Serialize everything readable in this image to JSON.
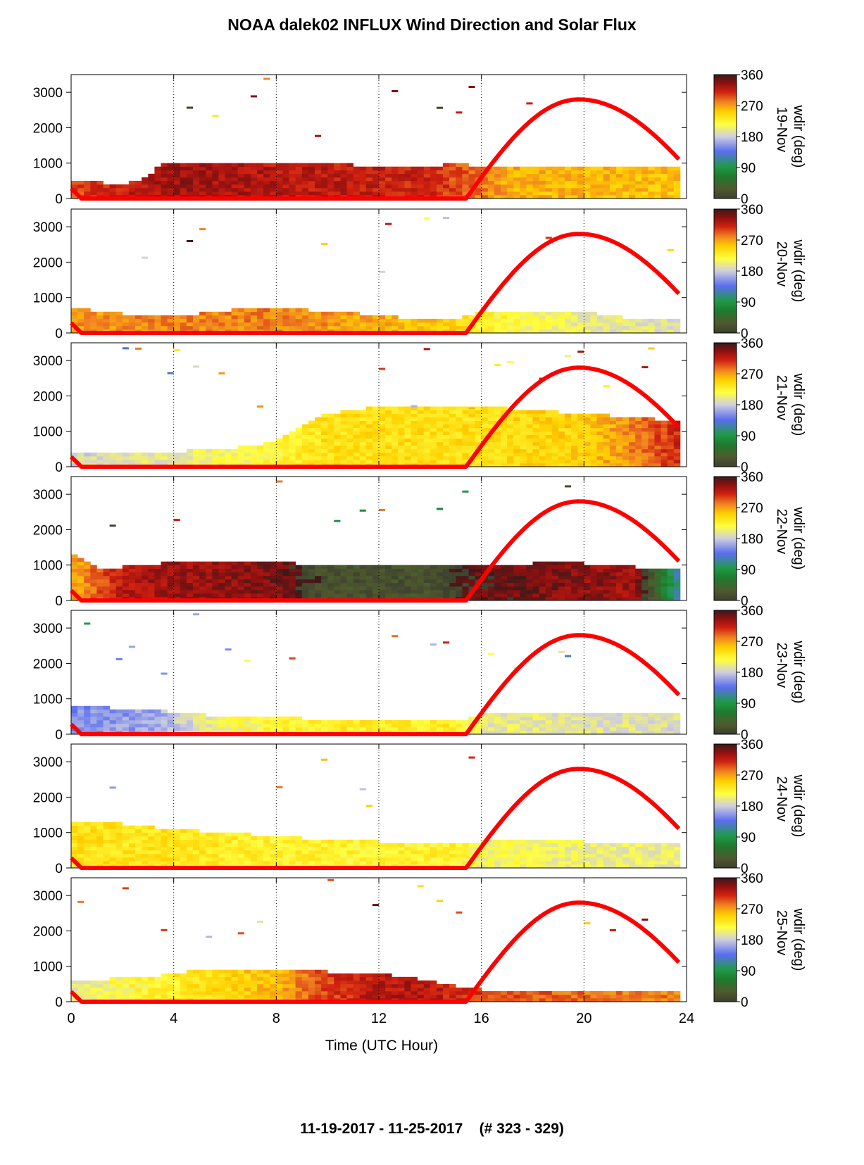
{
  "title": "NOAA dalek02 INFLUX Wind Direction and Solar Flux",
  "footer": "11-19-2017 - 11-25-2017    (# 323 - 329)",
  "chart_data": {
    "type": "heatmap",
    "title": "NOAA dalek02 INFLUX Wind Direction and Solar Flux",
    "xlabel": "Time (UTC Hour)",
    "xlim": [
      0,
      24
    ],
    "xticks": [
      0,
      4,
      8,
      12,
      16,
      20,
      24
    ],
    "ylim": [
      0,
      3500
    ],
    "yticks": [
      0,
      1000,
      2000,
      3000
    ],
    "colorbar": {
      "label": "wdir (deg)",
      "range": [
        0,
        360
      ],
      "ticks": [
        0,
        90,
        180,
        270,
        360
      ]
    },
    "colors": {
      "solar_curve": "#ff0000",
      "gridline": "#000000"
    },
    "panels": [
      {
        "date": "19-Nov",
        "mixing_top": [
          [
            0,
            500
          ],
          [
            1,
            460
          ],
          [
            2,
            420
          ],
          [
            3,
            600
          ],
          [
            3.6,
            1000
          ],
          [
            5,
            1050
          ],
          [
            6,
            1000
          ],
          [
            8,
            950
          ],
          [
            9,
            1000
          ],
          [
            10,
            1000
          ],
          [
            11,
            950
          ],
          [
            13,
            900
          ],
          [
            14,
            880
          ],
          [
            15,
            1000
          ],
          [
            16,
            900
          ],
          [
            18,
            900
          ],
          [
            20,
            880
          ],
          [
            22,
            880
          ],
          [
            23.7,
            880
          ]
        ],
        "wind_direction": [
          [
            0,
            300
          ],
          [
            3,
            320
          ],
          [
            4,
            330
          ],
          [
            8,
            320
          ],
          [
            14,
            310
          ],
          [
            15.5,
            290
          ],
          [
            17,
            265
          ],
          [
            20,
            260
          ],
          [
            23.7,
            255
          ]
        ],
        "solar_curve": {
          "start_hour": 15.4,
          "peak_hour": 19.8,
          "end_hour": 23.7,
          "peak": 2800,
          "start_value_at_0h": 280
        }
      },
      {
        "date": "20-Nov",
        "mixing_top": [
          [
            0,
            700
          ],
          [
            2,
            550
          ],
          [
            4,
            500
          ],
          [
            6,
            600
          ],
          [
            7,
            750
          ],
          [
            8,
            700
          ],
          [
            10,
            620
          ],
          [
            12,
            500
          ],
          [
            14,
            350
          ],
          [
            15,
            380
          ],
          [
            16,
            600
          ],
          [
            18,
            650
          ],
          [
            20,
            600
          ],
          [
            22,
            400
          ],
          [
            23.7,
            450
          ]
        ],
        "wind_direction": [
          [
            0,
            270
          ],
          [
            4,
            280
          ],
          [
            8,
            280
          ],
          [
            12,
            265
          ],
          [
            15,
            250
          ],
          [
            16,
            225
          ],
          [
            20,
            200
          ],
          [
            23.7,
            190
          ]
        ],
        "solar_curve": {
          "start_hour": 15.4,
          "peak_hour": 19.8,
          "end_hour": 23.7,
          "peak": 2800,
          "start_value_at_0h": 280
        }
      },
      {
        "date": "21-Nov",
        "mixing_top": [
          [
            0,
            400
          ],
          [
            3,
            400
          ],
          [
            6,
            500
          ],
          [
            8,
            700
          ],
          [
            9,
            1200
          ],
          [
            10,
            1500
          ],
          [
            12,
            1700
          ],
          [
            14,
            1700
          ],
          [
            16,
            1700
          ],
          [
            18,
            1600
          ],
          [
            20,
            1500
          ],
          [
            22,
            1400
          ],
          [
            23.7,
            1300
          ]
        ],
        "wind_direction": [
          [
            0,
            185
          ],
          [
            4,
            200
          ],
          [
            8,
            220
          ],
          [
            10,
            240
          ],
          [
            14,
            240
          ],
          [
            16,
            240
          ],
          [
            20,
            250
          ],
          [
            22,
            280
          ],
          [
            23.7,
            310
          ]
        ],
        "solar_curve": {
          "start_hour": 15.4,
          "peak_hour": 19.8,
          "end_hour": 23.7,
          "peak": 2800,
          "start_value_at_0h": 280
        }
      },
      {
        "date": "22-Nov",
        "mixing_top": [
          [
            0,
            1300
          ],
          [
            1,
            900
          ],
          [
            3,
            1000
          ],
          [
            4,
            1100
          ],
          [
            6,
            1150
          ],
          [
            8,
            1100
          ],
          [
            10,
            950
          ],
          [
            12,
            950
          ],
          [
            14,
            1000
          ],
          [
            16,
            1000
          ],
          [
            18,
            1050
          ],
          [
            20,
            1050
          ],
          [
            22,
            950
          ],
          [
            23.7,
            850
          ]
        ],
        "wind_direction": [
          [
            0,
            260
          ],
          [
            2,
            320
          ],
          [
            4,
            330
          ],
          [
            8,
            340
          ],
          [
            10,
            20
          ],
          [
            14,
            20
          ],
          [
            16,
            350
          ],
          [
            20,
            335
          ],
          [
            22,
            330
          ],
          [
            23.7,
            120
          ]
        ],
        "solar_curve": {
          "start_hour": 15.4,
          "peak_hour": 19.8,
          "end_hour": 23.7,
          "peak": 2800,
          "start_value_at_0h": 280
        }
      },
      {
        "date": "23-Nov",
        "mixing_top": [
          [
            0,
            800
          ],
          [
            3,
            700
          ],
          [
            6,
            500
          ],
          [
            9,
            450
          ],
          [
            12,
            400
          ],
          [
            15,
            380
          ],
          [
            16,
            550
          ],
          [
            18,
            550
          ],
          [
            20,
            600
          ],
          [
            22,
            600
          ],
          [
            23.7,
            600
          ]
        ],
        "wind_direction": [
          [
            0,
            150
          ],
          [
            3,
            160
          ],
          [
            6,
            210
          ],
          [
            10,
            230
          ],
          [
            15,
            230
          ],
          [
            16,
            200
          ],
          [
            20,
            195
          ],
          [
            23.7,
            190
          ]
        ],
        "solar_curve": {
          "start_hour": 15.4,
          "peak_hour": 19.8,
          "end_hour": 23.7,
          "peak": 2800,
          "start_value_at_0h": 280
        }
      },
      {
        "date": "24-Nov",
        "mixing_top": [
          [
            0,
            1300
          ],
          [
            2,
            1250
          ],
          [
            4,
            1100
          ],
          [
            6,
            1000
          ],
          [
            8,
            900
          ],
          [
            10,
            800
          ],
          [
            12,
            750
          ],
          [
            14,
            700
          ],
          [
            16,
            750
          ],
          [
            18,
            800
          ],
          [
            20,
            750
          ],
          [
            22,
            700
          ],
          [
            23.7,
            650
          ]
        ],
        "wind_direction": [
          [
            0,
            240
          ],
          [
            4,
            235
          ],
          [
            8,
            225
          ],
          [
            12,
            225
          ],
          [
            15,
            225
          ],
          [
            16,
            210
          ],
          [
            20,
            205
          ],
          [
            23.7,
            200
          ]
        ],
        "solar_curve": {
          "start_hour": 15.4,
          "peak_hour": 19.8,
          "end_hour": 23.7,
          "peak": 2800,
          "start_value_at_0h": 280
        }
      },
      {
        "date": "25-Nov",
        "mixing_top": [
          [
            0,
            600
          ],
          [
            3,
            700
          ],
          [
            5,
            900
          ],
          [
            7,
            900
          ],
          [
            8,
            900
          ],
          [
            10,
            850
          ],
          [
            12,
            800
          ],
          [
            13,
            700
          ],
          [
            14,
            600
          ],
          [
            15,
            450
          ],
          [
            16,
            350
          ],
          [
            18,
            300
          ],
          [
            20,
            300
          ],
          [
            22,
            300
          ],
          [
            23.7,
            350
          ]
        ],
        "wind_direction": [
          [
            0,
            200
          ],
          [
            4,
            230
          ],
          [
            8,
            260
          ],
          [
            10,
            300
          ],
          [
            12,
            320
          ],
          [
            14,
            320
          ],
          [
            16,
            300
          ],
          [
            20,
            285
          ],
          [
            23.7,
            280
          ]
        ],
        "solar_curve": {
          "start_hour": 15.4,
          "peak_hour": 19.8,
          "end_hour": 23.7,
          "peak": 2800,
          "start_value_at_0h": 280
        }
      }
    ]
  }
}
